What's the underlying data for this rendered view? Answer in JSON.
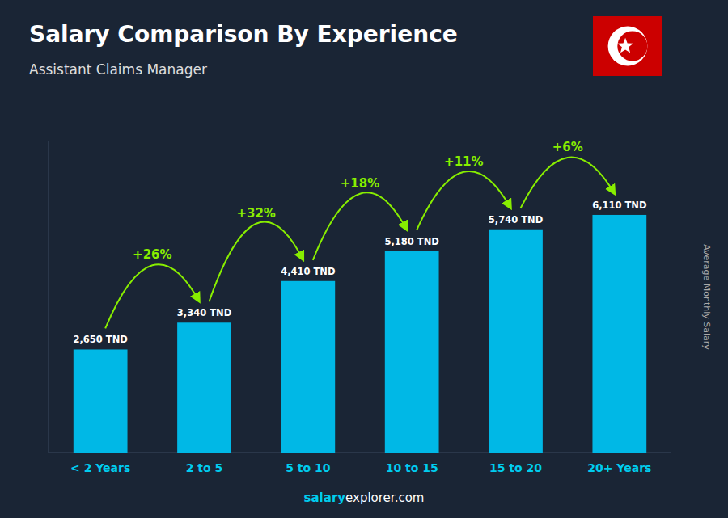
{
  "chart_data": {
    "type": "bar",
    "title": "Salary Comparison By Experience",
    "subtitle": "Assistant Claims Manager",
    "y_label": "Average Monthly Salary",
    "categories": [
      "< 2 Years",
      "2 to 5",
      "5 to 10",
      "10 to 15",
      "15 to 20",
      "20+ Years"
    ],
    "values": [
      2650,
      3340,
      4410,
      5180,
      5740,
      6110
    ],
    "value_labels": [
      "2,650 TND",
      "3,340 TND",
      "4,410 TND",
      "5,180 TND",
      "5,740 TND",
      "6,110 TND"
    ],
    "change_labels": [
      "+26%",
      "+32%",
      "+18%",
      "+11%",
      "+6%"
    ],
    "watermark": [
      "salary",
      "explorer.com"
    ],
    "color": "#00b8e6",
    "ylim": [
      0,
      8000
    ],
    "grid": false,
    "data_labels": true,
    "tick_labels": "x"
  }
}
